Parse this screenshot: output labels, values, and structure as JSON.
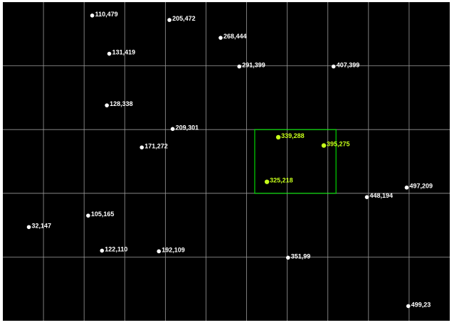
{
  "chart_data": {
    "type": "scatter",
    "xlim": [
      0,
      550
    ],
    "ylim": [
      0,
      500
    ],
    "grid": true,
    "grid_step": 50,
    "colors": {
      "background": "#000000",
      "grid": "#9a9a9a",
      "point": "#ffffff",
      "label": "#ffffff",
      "highlight_point": "#c6ff1a",
      "highlight_label": "#c6ff1a",
      "selection_box": "#00ff00"
    },
    "points": [
      {
        "x": 110,
        "y": 479,
        "label": "110,479",
        "highlight": false
      },
      {
        "x": 205,
        "y": 472,
        "label": "205,472",
        "highlight": false
      },
      {
        "x": 268,
        "y": 444,
        "label": "268,444",
        "highlight": false
      },
      {
        "x": 131,
        "y": 419,
        "label": "131,419",
        "highlight": false
      },
      {
        "x": 291,
        "y": 399,
        "label": "291,399",
        "highlight": false
      },
      {
        "x": 407,
        "y": 399,
        "label": "407,399",
        "highlight": false
      },
      {
        "x": 128,
        "y": 338,
        "label": "128,338",
        "highlight": false
      },
      {
        "x": 209,
        "y": 301,
        "label": "209,301",
        "highlight": false
      },
      {
        "x": 171,
        "y": 272,
        "label": "171,272",
        "highlight": false
      },
      {
        "x": 339,
        "y": 288,
        "label": "339,288",
        "highlight": true
      },
      {
        "x": 395,
        "y": 275,
        "label": "395,275",
        "highlight": true
      },
      {
        "x": 325,
        "y": 218,
        "label": "325,218",
        "highlight": true
      },
      {
        "x": 497,
        "y": 209,
        "label": "497,209",
        "highlight": false
      },
      {
        "x": 448,
        "y": 194,
        "label": "448,194",
        "highlight": false
      },
      {
        "x": 105,
        "y": 165,
        "label": "105,165",
        "highlight": false
      },
      {
        "x": 32,
        "y": 147,
        "label": "32,147",
        "highlight": false
      },
      {
        "x": 122,
        "y": 110,
        "label": "122,110",
        "highlight": false
      },
      {
        "x": 192,
        "y": 109,
        "label": "192,109",
        "highlight": false
      },
      {
        "x": 351,
        "y": 99,
        "label": "351,99",
        "highlight": false
      },
      {
        "x": 499,
        "y": 23,
        "label": "499,23",
        "highlight": false
      }
    ],
    "selection": {
      "x_min": 310,
      "x_max": 410,
      "y_min": 200,
      "y_max": 300
    }
  }
}
